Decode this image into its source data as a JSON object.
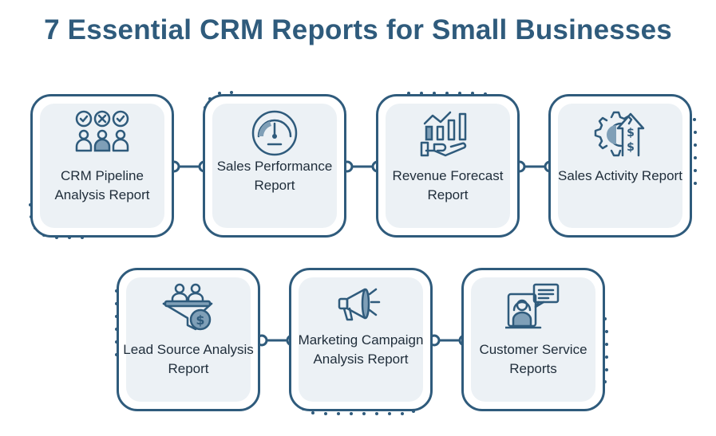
{
  "title": "7 Essential CRM Reports for Small Businesses",
  "cards": [
    {
      "label": "CRM Pipeline Analysis Report",
      "icon": "team-checklist-icon"
    },
    {
      "label": "Sales Performance Report",
      "icon": "speedometer-icon"
    },
    {
      "label": "Revenue Forecast Report",
      "icon": "growth-chart-hand-icon"
    },
    {
      "label": "Sales Activity Report",
      "icon": "gear-dollar-arrow-icon"
    },
    {
      "label": "Lead Source Analysis Report",
      "icon": "lead-funnel-icon"
    },
    {
      "label": "Marketing Campaign Analysis Report",
      "icon": "megaphone-icon"
    },
    {
      "label": "Customer Service Reports",
      "icon": "customer-support-icon"
    }
  ],
  "colors": {
    "primary": "#2f5b7c",
    "card_fill": "#ecf1f5",
    "text": "#1f2d3a"
  }
}
